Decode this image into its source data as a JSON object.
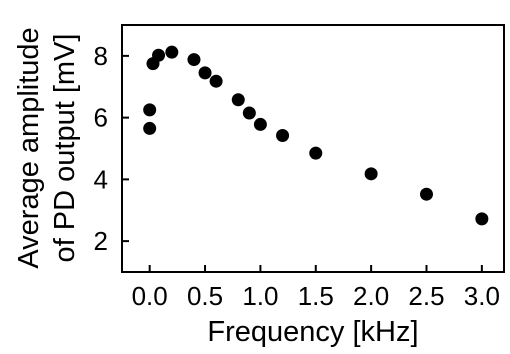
{
  "chart_data": {
    "type": "scatter",
    "title": "",
    "xlabel": "Frequency [kHz]",
    "ylabel_lines": [
      "Average amplitude",
      "of PD output [mV]"
    ],
    "xlim": [
      -0.25,
      3.2
    ],
    "ylim": [
      1,
      9
    ],
    "xticks": [
      0.0,
      0.5,
      1.0,
      1.5,
      2.0,
      2.5,
      3.0
    ],
    "xtick_labels": [
      "0.0",
      "0.5",
      "1.0",
      "1.5",
      "2.0",
      "2.5",
      "3.0"
    ],
    "yticks": [
      2,
      4,
      6,
      8
    ],
    "ytick_labels": [
      "2",
      "4",
      "6",
      "8"
    ],
    "marker_color": "#000000",
    "grid": false,
    "legend": "none",
    "points": [
      {
        "x": 0.0,
        "y": 5.65
      },
      {
        "x": 0.0,
        "y": 6.25
      },
      {
        "x": 0.03,
        "y": 7.75
      },
      {
        "x": 0.08,
        "y": 8.02
      },
      {
        "x": 0.2,
        "y": 8.12
      },
      {
        "x": 0.4,
        "y": 7.88
      },
      {
        "x": 0.5,
        "y": 7.45
      },
      {
        "x": 0.6,
        "y": 7.18
      },
      {
        "x": 0.8,
        "y": 6.58
      },
      {
        "x": 0.9,
        "y": 6.15
      },
      {
        "x": 1.0,
        "y": 5.78
      },
      {
        "x": 1.2,
        "y": 5.42
      },
      {
        "x": 1.5,
        "y": 4.85
      },
      {
        "x": 2.0,
        "y": 4.18
      },
      {
        "x": 2.5,
        "y": 3.52
      },
      {
        "x": 3.0,
        "y": 2.72
      }
    ]
  }
}
